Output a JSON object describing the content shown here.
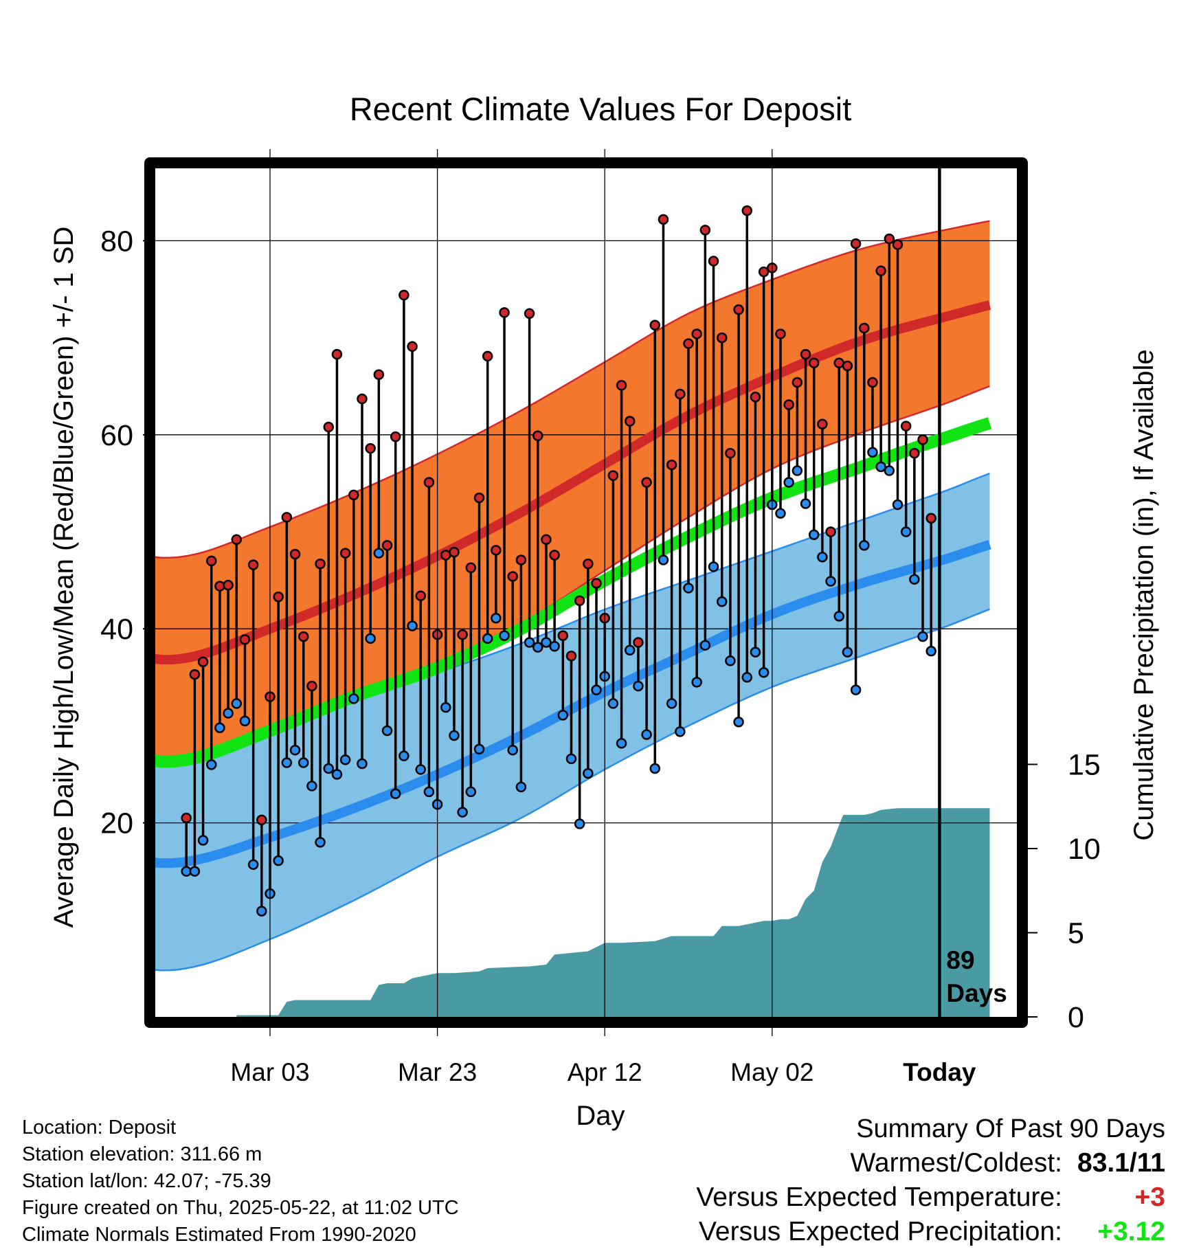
{
  "chart_data": {
    "type": "line",
    "title": "Recent Climate Values For Deposit",
    "xlabel": "Day",
    "ylabel": "Average Daily High/Low/Mean (Red/Blue/Green) +/- 1 SD",
    "y2label": "Cumulative Precipitation (in), If Available",
    "days_label_number": "89",
    "days_label_word": "Days",
    "x_range": [
      -14,
      86
    ],
    "ylim": [
      1,
      88
    ],
    "y2lim": [
      0,
      18
    ],
    "x_ticks": [
      {
        "day": 0,
        "label": "Mar 03"
      },
      {
        "day": 20,
        "label": "Mar 23"
      },
      {
        "day": 40,
        "label": "Apr 12"
      },
      {
        "day": 60,
        "label": "May 02"
      },
      {
        "day": 80,
        "label": "Today"
      }
    ],
    "y_ticks": [
      20,
      40,
      60,
      80
    ],
    "y_minor_ticks": [
      10,
      30,
      50,
      70
    ],
    "y2_ticks": [
      0,
      5,
      10,
      15
    ],
    "today_day": 80,
    "grid": true,
    "colors": {
      "high_band": "#f3782d",
      "high_mean": "#d1282a",
      "high_band_edge": "#d1282a",
      "low_band": "#82c1e6",
      "low_mean": "#2a8cec",
      "low_band_edge": "#2a8cec",
      "mean": "#12e312",
      "precip": "#4a9aa4",
      "high_dot": "#d1282a",
      "low_dot": "#2a8cec",
      "frame": "#000000"
    },
    "normals": {
      "days": [
        -10,
        0,
        10,
        20,
        30,
        40,
        50,
        60,
        70,
        80,
        90
      ],
      "high_mean": [
        37,
        40,
        43.5,
        47.5,
        52,
        57,
        62,
        66,
        69.5,
        72,
        74
      ],
      "high_upper": [
        47.5,
        50.5,
        54,
        58,
        62.5,
        67.5,
        72.5,
        76,
        79,
        81,
        82.5
      ],
      "high_lower": [
        27,
        30,
        33,
        36,
        40.5,
        46,
        51.5,
        56.5,
        60,
        63,
        66
      ],
      "mean": [
        26.5,
        29.5,
        33,
        36,
        40,
        45,
        49.5,
        53.5,
        56.5,
        59.5,
        62
      ],
      "low_mean": [
        16,
        18.5,
        21.5,
        25,
        29,
        33.5,
        37.5,
        41.5,
        44.5,
        47,
        49.5
      ],
      "low_upper": [
        27.5,
        30.5,
        33,
        35.5,
        38.5,
        42,
        45,
        48,
        51,
        54,
        57
      ],
      "low_lower": [
        5,
        8,
        12,
        16.5,
        20.5,
        25.5,
        30,
        34,
        37,
        40,
        43
      ]
    },
    "daily": {
      "days": [
        -10,
        -9,
        -8,
        -7,
        -6,
        -5,
        -4,
        -3,
        -2,
        -1,
        0,
        1,
        2,
        3,
        4,
        5,
        6,
        7,
        8,
        9,
        10,
        11,
        12,
        13,
        14,
        15,
        16,
        17,
        18,
        19,
        20,
        21,
        22,
        23,
        24,
        25,
        26,
        27,
        28,
        29,
        30,
        31,
        32,
        33,
        34,
        35,
        36,
        37,
        38,
        39,
        40,
        41,
        42,
        43,
        44,
        45,
        46,
        47,
        48,
        49,
        50,
        51,
        52,
        53,
        54,
        55,
        56,
        57,
        58,
        59,
        60,
        61,
        62,
        63,
        64,
        65,
        66,
        67,
        68,
        69,
        70,
        71,
        72,
        73,
        74,
        75,
        76,
        77,
        78,
        79
      ],
      "high": [
        20.5,
        35.3,
        36.6,
        47,
        44.4,
        44.5,
        49.2,
        38.9,
        46.6,
        20.3,
        33,
        43.3,
        51.5,
        47.7,
        39.2,
        34.1,
        46.7,
        60.8,
        68.3,
        47.8,
        53.8,
        63.7,
        58.6,
        66.2,
        48.6,
        59.8,
        74.4,
        69.1,
        43.4,
        55.1,
        39.4,
        47.6,
        47.9,
        39.4,
        46.3,
        53.5,
        68.1,
        48.1,
        72.6,
        45.4,
        47.1,
        72.5,
        59.9,
        49.2,
        47.6,
        39.3,
        37.2,
        42.9,
        46.7,
        44.7,
        41.1,
        55.8,
        65.1,
        61.4,
        38.6,
        55.1,
        71.3,
        82.2,
        56.9,
        64.2,
        69.4,
        70.4,
        81.1,
        77.9,
        70,
        58.1,
        72.9,
        83.1,
        63.9,
        76.8,
        77.2,
        70.4,
        63.1,
        65.4,
        68.3,
        67.4,
        61.1,
        50,
        67.4,
        67.1,
        79.7,
        71,
        65.4,
        76.9,
        80.2,
        79.6,
        60.9,
        58.1,
        59.5,
        51.4
      ],
      "low": [
        15,
        15,
        18.2,
        26,
        29.8,
        31.3,
        32.3,
        30.5,
        15.7,
        10.9,
        12.7,
        16.1,
        26.2,
        27.5,
        26.2,
        23.8,
        18,
        25.6,
        25,
        26.5,
        32.8,
        26.1,
        39,
        47.8,
        29.5,
        23,
        26.9,
        40.3,
        25.5,
        23.2,
        21.9,
        31.9,
        29,
        21.1,
        23.2,
        27.6,
        39,
        41.1,
        39.3,
        27.5,
        23.7,
        38.6,
        38.1,
        38.6,
        38.2,
        31.1,
        26.6,
        19.9,
        25.1,
        33.7,
        35.1,
        32.3,
        28.2,
        37.8,
        34.1,
        29.1,
        25.6,
        47.1,
        32.3,
        29.4,
        44.2,
        34.5,
        38.3,
        46.4,
        42.8,
        36.7,
        30.4,
        35,
        37.6,
        35.5,
        52.8,
        51.9,
        55.1,
        56.3,
        52.9,
        49.7,
        47.4,
        44.9,
        41.3,
        37.6,
        33.7,
        48.6,
        58.2,
        56.7,
        56.3,
        52.8,
        50,
        45.1,
        39.2,
        37.7
      ]
    },
    "precip_cumulative": {
      "days": [
        -10,
        -4,
        -4,
        -2,
        1,
        2,
        3,
        12,
        13,
        14,
        16,
        17,
        18,
        20,
        22,
        25,
        26,
        31,
        33,
        34,
        36,
        38,
        40,
        42,
        46,
        48,
        50,
        53,
        54,
        56,
        59,
        60,
        61,
        62,
        63,
        64,
        65,
        66,
        67,
        68,
        68.5,
        70,
        71,
        72,
        73,
        75,
        76,
        78,
        79,
        80,
        81,
        82,
        83,
        85,
        86
      ],
      "values": [
        0,
        0,
        0.1,
        0.1,
        0.1,
        0.9,
        1,
        1,
        1.9,
        2,
        2,
        2.3,
        2.4,
        2.6,
        2.6,
        2.7,
        2.9,
        3,
        3.1,
        3.7,
        3.8,
        3.9,
        4.4,
        4.4,
        4.5,
        4.8,
        4.8,
        4.8,
        5.4,
        5.4,
        5.7,
        5.7,
        5.8,
        5.8,
        6,
        7,
        7.5,
        9.2,
        10.1,
        11.4,
        12,
        12,
        12,
        12.1,
        12.3,
        12.4,
        12.4,
        12.4,
        12.4,
        12.4,
        12.4,
        12.4,
        12.4,
        12.4,
        12.4
      ]
    }
  },
  "info": {
    "location": "Location: Deposit",
    "elevation": "Station elevation: 311.66 m",
    "latlon": "Station lat/lon: 42.07; -75.39",
    "created": "Figure created on Thu, 2025-05-22, at 11:02 UTC",
    "normals": "Climate Normals Estimated From 1990-2020"
  },
  "summary": {
    "title": "Summary Of Past 90 Days",
    "warmest_coldest_label": "Warmest/Coldest:",
    "warmest_coldest_value": "83.1/11",
    "temp_label": "Versus Expected Temperature:",
    "temp_value": "+3",
    "temp_color": "#d1282a",
    "precip_label": "Versus Expected Precipitation:",
    "precip_value": "+3.12",
    "precip_color": "#12e312"
  }
}
